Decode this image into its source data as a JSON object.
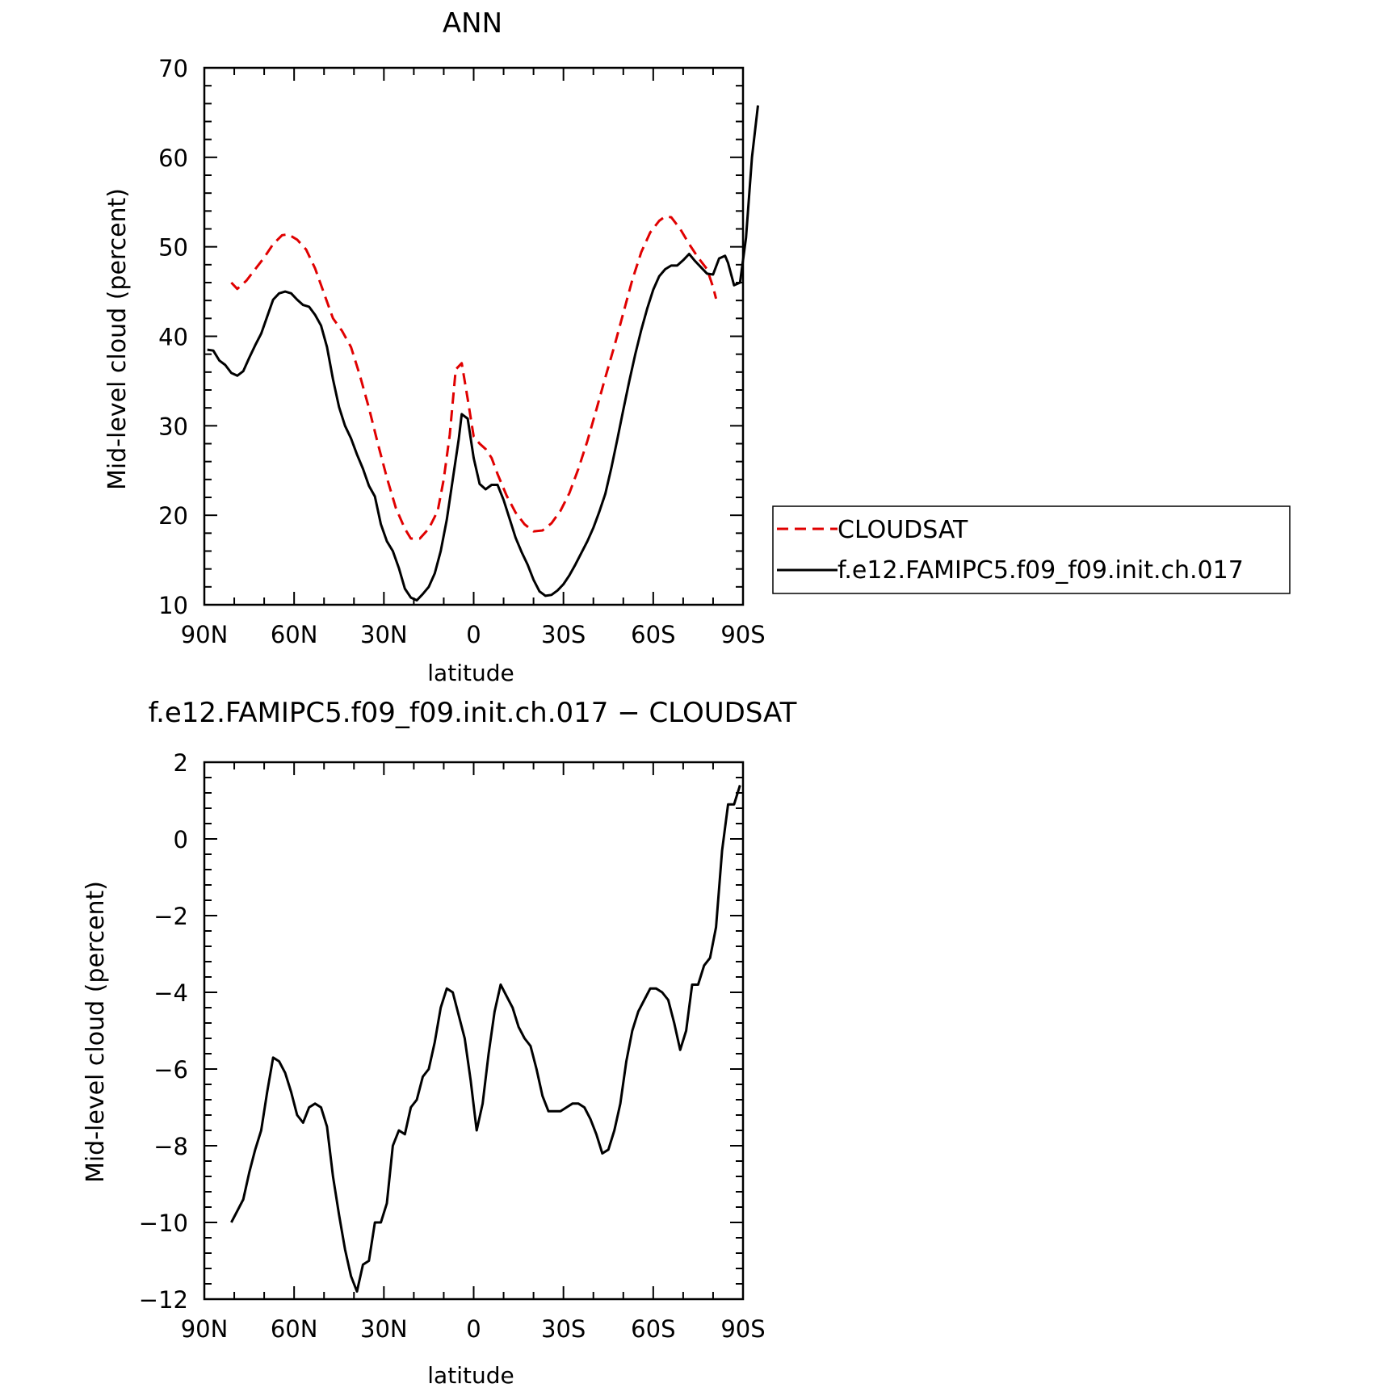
{
  "chart_data": [
    {
      "type": "line",
      "title": "ANN",
      "xlabel": "latitude",
      "ylabel": "Mid-level cloud (percent)",
      "xlim": [
        90,
        -90
      ],
      "ylim": [
        10,
        70
      ],
      "x_ticks": [
        {
          "value": 90,
          "label": "90N"
        },
        {
          "value": 60,
          "label": "60N"
        },
        {
          "value": 30,
          "label": "30N"
        },
        {
          "value": 0,
          "label": "0"
        },
        {
          "value": -30,
          "label": "30S"
        },
        {
          "value": -60,
          "label": "60S"
        },
        {
          "value": -90,
          "label": "90S"
        }
      ],
      "y_ticks": [
        {
          "value": 10,
          "label": "10"
        },
        {
          "value": 20,
          "label": "20"
        },
        {
          "value": 30,
          "label": "30"
        },
        {
          "value": 40,
          "label": "40"
        },
        {
          "value": 50,
          "label": "50"
        },
        {
          "value": 60,
          "label": "60"
        },
        {
          "value": 70,
          "label": "70"
        }
      ],
      "legend_position": "right",
      "series": [
        {
          "name": "CLOUDSAT",
          "color": "#e00000",
          "dash": true,
          "points": [
            [
              81,
              46.0
            ],
            [
              79,
              45.3
            ],
            [
              76,
              46.2
            ],
            [
              73,
              47.5
            ],
            [
              70,
              48.8
            ],
            [
              67,
              50.3
            ],
            [
              64,
              51.3
            ],
            [
              62,
              51.4
            ],
            [
              59,
              50.8
            ],
            [
              56,
              49.7
            ],
            [
              53,
              47.6
            ],
            [
              50,
              44.8
            ],
            [
              47,
              42.0
            ],
            [
              44,
              40.6
            ],
            [
              41,
              38.8
            ],
            [
              38,
              35.6
            ],
            [
              35,
              32.0
            ],
            [
              32,
              28.0
            ],
            [
              29,
              24.2
            ],
            [
              26,
              20.8
            ],
            [
              23,
              18.5
            ],
            [
              21,
              17.4
            ],
            [
              18,
              17.4
            ],
            [
              15,
              18.5
            ],
            [
              12,
              20.5
            ],
            [
              10,
              24.0
            ],
            [
              8,
              29.0
            ],
            [
              6,
              36.3
            ],
            [
              4,
              37.0
            ],
            [
              2,
              33.0
            ],
            [
              0,
              28.8
            ],
            [
              -2,
              28.0
            ],
            [
              -4,
              27.4
            ],
            [
              -6,
              26.4
            ],
            [
              -8,
              24.6
            ],
            [
              -11,
              22.2
            ],
            [
              -14,
              20.3
            ],
            [
              -17,
              19.0
            ],
            [
              -20,
              18.2
            ],
            [
              -23,
              18.3
            ],
            [
              -26,
              19.1
            ],
            [
              -29,
              20.5
            ],
            [
              -32,
              22.5
            ],
            [
              -35,
              25.2
            ],
            [
              -38,
              28.3
            ],
            [
              -41,
              31.8
            ],
            [
              -44,
              35.4
            ],
            [
              -47,
              38.9
            ],
            [
              -50,
              42.6
            ],
            [
              -53,
              46.3
            ],
            [
              -56,
              49.4
            ],
            [
              -59,
              51.6
            ],
            [
              -62,
              52.9
            ],
            [
              -64,
              53.4
            ],
            [
              -66,
              53.3
            ],
            [
              -69,
              52.0
            ],
            [
              -72,
              50.3
            ],
            [
              -75,
              48.8
            ],
            [
              -78,
              47.5
            ],
            [
              -80,
              45.5
            ],
            [
              -81,
              44.2
            ]
          ]
        },
        {
          "name": "f.e12.FAMIPC5.f09_f09.init.ch.017",
          "color": "#000000",
          "dash": false,
          "points": [
            [
              89,
              38.5
            ],
            [
              87,
              38.4
            ],
            [
              85,
              37.3
            ],
            [
              83,
              36.8
            ],
            [
              81,
              35.9
            ],
            [
              79,
              35.6
            ],
            [
              77,
              36.1
            ],
            [
              75,
              37.6
            ],
            [
              73,
              39.0
            ],
            [
              71,
              40.3
            ],
            [
              69,
              42.2
            ],
            [
              67,
              44.1
            ],
            [
              65,
              44.8
            ],
            [
              63,
              45.0
            ],
            [
              61,
              44.8
            ],
            [
              59,
              44.1
            ],
            [
              57,
              43.5
            ],
            [
              55,
              43.3
            ],
            [
              53,
              42.4
            ],
            [
              51,
              41.2
            ],
            [
              49,
              38.8
            ],
            [
              47,
              35.2
            ],
            [
              45,
              32.1
            ],
            [
              43,
              30.0
            ],
            [
              41,
              28.6
            ],
            [
              39,
              26.8
            ],
            [
              37,
              25.2
            ],
            [
              35,
              23.3
            ],
            [
              33,
              22.1
            ],
            [
              31,
              19.0
            ],
            [
              29,
              17.1
            ],
            [
              27,
              16.0
            ],
            [
              25,
              14.1
            ],
            [
              23,
              11.8
            ],
            [
              21,
              10.8
            ],
            [
              19,
              10.5
            ],
            [
              17,
              11.2
            ],
            [
              15,
              12.0
            ],
            [
              13,
              13.5
            ],
            [
              11,
              16.0
            ],
            [
              9,
              19.5
            ],
            [
              7,
              24.0
            ],
            [
              5,
              28.5
            ],
            [
              4,
              31.3
            ],
            [
              2,
              30.8
            ],
            [
              0,
              26.4
            ],
            [
              -2,
              23.5
            ],
            [
              -4,
              22.9
            ],
            [
              -6,
              23.4
            ],
            [
              -8,
              23.4
            ],
            [
              -10,
              21.7
            ],
            [
              -12,
              19.6
            ],
            [
              -14,
              17.5
            ],
            [
              -16,
              15.9
            ],
            [
              -18,
              14.5
            ],
            [
              -20,
              12.8
            ],
            [
              -22,
              11.5
            ],
            [
              -24,
              11.0
            ],
            [
              -26,
              11.1
            ],
            [
              -28,
              11.6
            ],
            [
              -30,
              12.3
            ],
            [
              -32,
              13.3
            ],
            [
              -34,
              14.5
            ],
            [
              -36,
              15.8
            ],
            [
              -38,
              17.1
            ],
            [
              -40,
              18.6
            ],
            [
              -42,
              20.4
            ],
            [
              -44,
              22.4
            ],
            [
              -46,
              25.3
            ],
            [
              -48,
              28.5
            ],
            [
              -50,
              31.8
            ],
            [
              -52,
              35.0
            ],
            [
              -54,
              38.0
            ],
            [
              -56,
              40.7
            ],
            [
              -58,
              43.1
            ],
            [
              -60,
              45.2
            ],
            [
              -62,
              46.7
            ],
            [
              -64,
              47.5
            ],
            [
              -66,
              47.9
            ],
            [
              -68,
              47.9
            ],
            [
              -70,
              48.5
            ],
            [
              -72,
              49.2
            ],
            [
              -74,
              48.4
            ],
            [
              -76,
              47.7
            ],
            [
              -78,
              47.0
            ],
            [
              -80,
              46.9
            ],
            [
              -82,
              48.7
            ],
            [
              -84,
              49.0
            ],
            [
              -85,
              48.2
            ],
            [
              -87,
              45.7
            ],
            [
              -89,
              46.0
            ],
            [
              -91,
              51.0
            ],
            [
              -93,
              60.0
            ],
            [
              -95,
              65.8
            ]
          ]
        }
      ]
    },
    {
      "type": "line",
      "title": "f.e12.FAMIPC5.f09_f09.init.ch.017 − CLOUDSAT",
      "xlabel": "latitude",
      "ylabel": "Mid-level cloud (percent)",
      "xlim": [
        90,
        -90
      ],
      "ylim": [
        -12,
        2
      ],
      "x_ticks": [
        {
          "value": 90,
          "label": "90N"
        },
        {
          "value": 60,
          "label": "60N"
        },
        {
          "value": 30,
          "label": "30N"
        },
        {
          "value": 0,
          "label": "0"
        },
        {
          "value": -30,
          "label": "30S"
        },
        {
          "value": -60,
          "label": "60S"
        },
        {
          "value": -90,
          "label": "90S"
        }
      ],
      "y_ticks": [
        {
          "value": 2,
          "label": "2"
        },
        {
          "value": 0,
          "label": "0"
        },
        {
          "value": -2,
          "label": "−2"
        },
        {
          "value": -4,
          "label": "−4"
        },
        {
          "value": -6,
          "label": "−6"
        },
        {
          "value": -8,
          "label": "−8"
        },
        {
          "value": -10,
          "label": "−10"
        },
        {
          "value": -12,
          "label": "−12"
        }
      ],
      "series": [
        {
          "color": "#000000",
          "dash": false,
          "points": [
            [
              81,
              -10.0
            ],
            [
              79,
              -9.7
            ],
            [
              77,
              -9.4
            ],
            [
              75,
              -8.7
            ],
            [
              73,
              -8.1
            ],
            [
              71,
              -7.6
            ],
            [
              69,
              -6.6
            ],
            [
              67,
              -5.7
            ],
            [
              65,
              -5.8
            ],
            [
              63,
              -6.1
            ],
            [
              61,
              -6.6
            ],
            [
              59,
              -7.2
            ],
            [
              57,
              -7.4
            ],
            [
              55,
              -7.0
            ],
            [
              53,
              -6.9
            ],
            [
              51,
              -7.0
            ],
            [
              49,
              -7.5
            ],
            [
              47,
              -8.8
            ],
            [
              45,
              -9.8
            ],
            [
              43,
              -10.7
            ],
            [
              41,
              -11.4
            ],
            [
              39,
              -11.8
            ],
            [
              37,
              -11.1
            ],
            [
              35,
              -11.0
            ],
            [
              33,
              -10.0
            ],
            [
              31,
              -10.0
            ],
            [
              29,
              -9.5
            ],
            [
              27,
              -8.0
            ],
            [
              25,
              -7.6
            ],
            [
              23,
              -7.7
            ],
            [
              21,
              -7.0
            ],
            [
              19,
              -6.8
            ],
            [
              17,
              -6.2
            ],
            [
              15,
              -6.0
            ],
            [
              13,
              -5.3
            ],
            [
              11,
              -4.4
            ],
            [
              9,
              -3.9
            ],
            [
              7,
              -4.0
            ],
            [
              5,
              -4.6
            ],
            [
              3,
              -5.2
            ],
            [
              1,
              -6.3
            ],
            [
              -1,
              -7.6
            ],
            [
              -3,
              -6.9
            ],
            [
              -5,
              -5.6
            ],
            [
              -7,
              -4.5
            ],
            [
              -9,
              -3.8
            ],
            [
              -11,
              -4.1
            ],
            [
              -13,
              -4.4
            ],
            [
              -15,
              -4.9
            ],
            [
              -17,
              -5.2
            ],
            [
              -19,
              -5.4
            ],
            [
              -21,
              -6.0
            ],
            [
              -23,
              -6.7
            ],
            [
              -25,
              -7.1
            ],
            [
              -27,
              -7.1
            ],
            [
              -29,
              -7.1
            ],
            [
              -31,
              -7.0
            ],
            [
              -33,
              -6.9
            ],
            [
              -35,
              -6.9
            ],
            [
              -37,
              -7.0
            ],
            [
              -39,
              -7.3
            ],
            [
              -41,
              -7.7
            ],
            [
              -43,
              -8.2
            ],
            [
              -45,
              -8.1
            ],
            [
              -47,
              -7.6
            ],
            [
              -49,
              -6.9
            ],
            [
              -51,
              -5.8
            ],
            [
              -53,
              -5.0
            ],
            [
              -55,
              -4.5
            ],
            [
              -57,
              -4.2
            ],
            [
              -59,
              -3.9
            ],
            [
              -61,
              -3.9
            ],
            [
              -63,
              -4.0
            ],
            [
              -65,
              -4.2
            ],
            [
              -67,
              -4.8
            ],
            [
              -69,
              -5.5
            ],
            [
              -71,
              -5.0
            ],
            [
              -73,
              -3.8
            ],
            [
              -75,
              -3.8
            ],
            [
              -77,
              -3.3
            ],
            [
              -79,
              -3.1
            ],
            [
              -81,
              -2.3
            ],
            [
              -83,
              -0.3
            ],
            [
              -85,
              0.9
            ],
            [
              -87,
              0.9
            ],
            [
              -89,
              1.4
            ]
          ]
        }
      ]
    }
  ]
}
